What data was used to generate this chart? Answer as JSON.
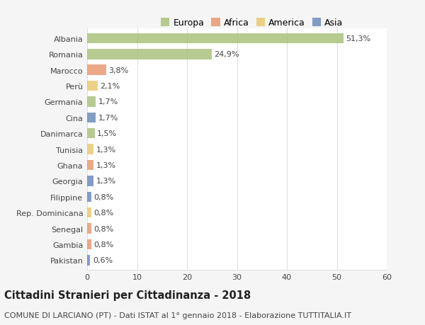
{
  "categories": [
    "Albania",
    "Romania",
    "Marocco",
    "Perù",
    "Germania",
    "Cina",
    "Danimarca",
    "Tunisia",
    "Ghana",
    "Georgia",
    "Filippine",
    "Rep. Dominicana",
    "Senegal",
    "Gambia",
    "Pakistan"
  ],
  "values": [
    51.3,
    24.9,
    3.8,
    2.1,
    1.7,
    1.7,
    1.5,
    1.3,
    1.3,
    1.3,
    0.8,
    0.8,
    0.8,
    0.8,
    0.6
  ],
  "labels": [
    "51,3%",
    "24,9%",
    "3,8%",
    "2,1%",
    "1,7%",
    "1,7%",
    "1,5%",
    "1,3%",
    "1,3%",
    "1,3%",
    "0,8%",
    "0,8%",
    "0,8%",
    "0,8%",
    "0,6%"
  ],
  "colors": [
    "#a8c078",
    "#a8c078",
    "#e8956d",
    "#e8c86d",
    "#a8c078",
    "#6888b8",
    "#a8c078",
    "#e8c86d",
    "#e8956d",
    "#6888b8",
    "#6888b8",
    "#e8c86d",
    "#e8956d",
    "#e8956d",
    "#6888b8"
  ],
  "legend_labels": [
    "Europa",
    "Africa",
    "America",
    "Asia"
  ],
  "legend_colors": [
    "#a8c078",
    "#e8956d",
    "#e8c86d",
    "#6888b8"
  ],
  "title": "Cittadini Stranieri per Cittadinanza - 2018",
  "subtitle": "COMUNE DI LARCIANO (PT) - Dati ISTAT al 1° gennaio 2018 - Elaborazione TUTTITALIA.IT",
  "xlim": [
    0,
    60
  ],
  "xticks": [
    0,
    10,
    20,
    30,
    40,
    50,
    60
  ],
  "background_color": "#f5f5f5",
  "bar_background": "#ffffff",
  "grid_color": "#dddddd",
  "text_color": "#444444",
  "title_fontsize": 10.5,
  "subtitle_fontsize": 8,
  "tick_fontsize": 8,
  "label_fontsize": 8,
  "legend_fontsize": 9,
  "bar_height": 0.65
}
